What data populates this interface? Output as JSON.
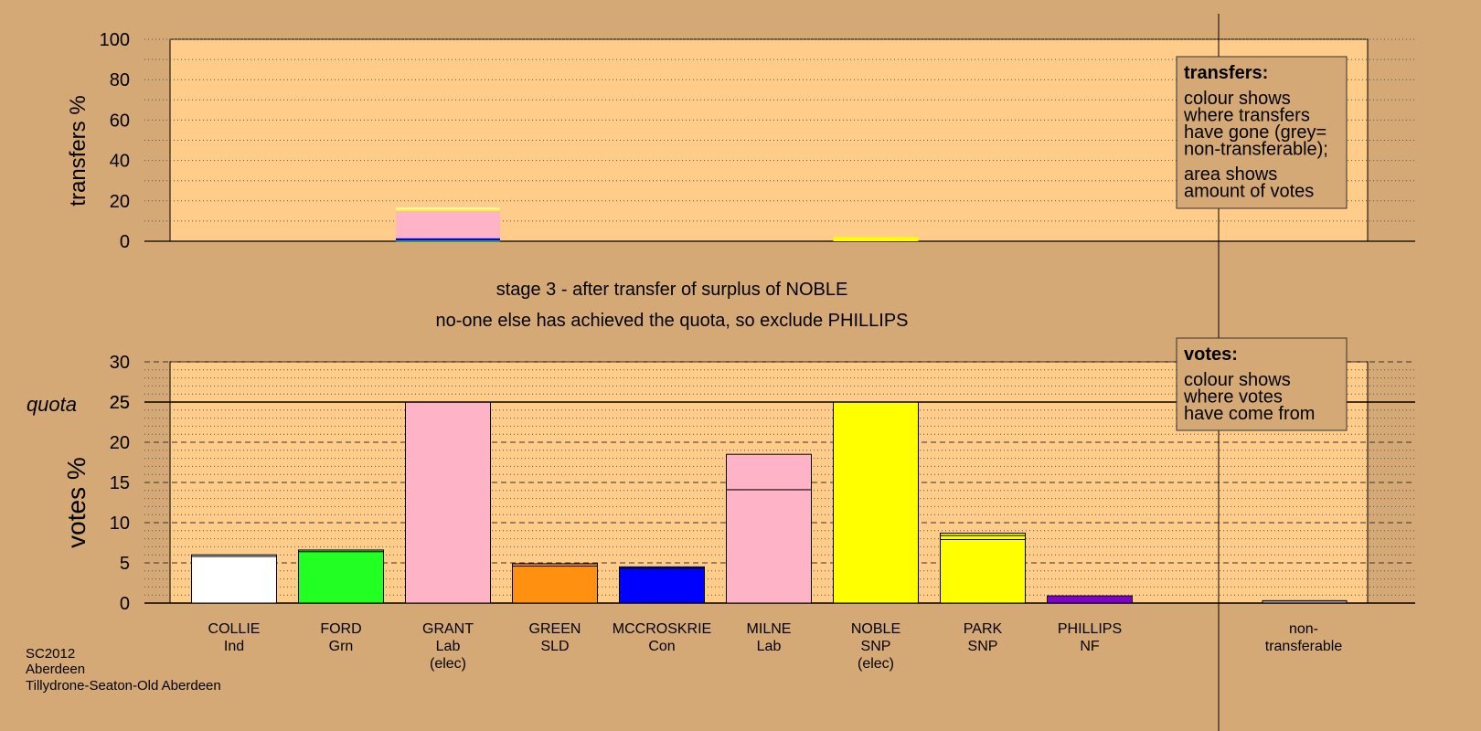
{
  "chart_data": [
    {
      "type": "bar",
      "stacked": true,
      "ylabel": "transfers %",
      "ylim": [
        0,
        100
      ],
      "yticks": [
        0,
        20,
        40,
        60,
        80,
        100
      ],
      "categories": [
        "COLLIE Ind",
        "FORD Grn",
        "GRANT Lab (elec)",
        "GREEN SLD",
        "MCCROSKRIE Con",
        "MILNE Lab",
        "NOBLE SNP (elec)",
        "PARK SNP",
        "PHILLIPS NF"
      ],
      "bars": [
        {
          "category": "GRANT Lab (elec)",
          "segments": [
            {
              "value": 0.3,
              "color": "#00ff00"
            },
            {
              "value": 1.2,
              "color": "#0000ff"
            },
            {
              "value": 13.5,
              "color": "#ffb3c6"
            },
            {
              "value": 1.0,
              "color": "#ffff00"
            },
            {
              "value": 0.6,
              "color": "#ffffff"
            }
          ]
        },
        {
          "category": "NOBLE SNP (elec)",
          "segments": [
            {
              "value": 2.0,
              "color": "#ffff00"
            }
          ]
        }
      ],
      "legend_box": {
        "title": "transfers:",
        "lines1": [
          "colour shows",
          "where transfers",
          "have gone (grey=",
          "non-transferable);"
        ],
        "lines2": [
          "area shows",
          "amount of votes"
        ]
      }
    },
    {
      "type": "bar",
      "stacked": true,
      "ylabel": "votes %",
      "ylim": [
        0,
        30
      ],
      "yticks": [
        0,
        5,
        10,
        15,
        20,
        25,
        30
      ],
      "quota": 25,
      "quota_label": "quota",
      "categories": [
        {
          "name": "COLLIE",
          "party": "Ind",
          "note": ""
        },
        {
          "name": "FORD",
          "party": "Grn",
          "note": ""
        },
        {
          "name": "GRANT",
          "party": "Lab",
          "note": "(elec)"
        },
        {
          "name": "GREEN",
          "party": "SLD",
          "note": ""
        },
        {
          "name": "MCCROSKRIE",
          "party": "Con",
          "note": ""
        },
        {
          "name": "MILNE",
          "party": "Lab",
          "note": ""
        },
        {
          "name": "NOBLE",
          "party": "SNP",
          "note": "(elec)"
        },
        {
          "name": "PARK",
          "party": "SNP",
          "note": ""
        },
        {
          "name": "PHILLIPS",
          "party": "NF",
          "note": ""
        }
      ],
      "bars": [
        {
          "color": "#ffffff",
          "values": [
            5.8,
            0.2
          ]
        },
        {
          "color": "#22ff22",
          "values": [
            6.4,
            0.2
          ]
        },
        {
          "color": "#ffb3c6",
          "values": [
            25.0
          ]
        },
        {
          "color": "#ff9010",
          "values": [
            4.6,
            0.3
          ]
        },
        {
          "color": "#0000ff",
          "values": [
            4.3,
            0.2
          ]
        },
        {
          "color": "#ffb3c6",
          "values": [
            14.1,
            4.4
          ]
        },
        {
          "color": "#ffff00",
          "values": [
            25.0
          ]
        },
        {
          "color": "#ffff00",
          "values": [
            7.9,
            0.5,
            0.3
          ]
        },
        {
          "color": "#8000d0",
          "values": [
            0.9
          ]
        }
      ],
      "nontransferable": {
        "label1": "non-",
        "label2": "transferable",
        "value": 0.3,
        "color": "#a0a0a0"
      },
      "legend_box": {
        "title": "votes:",
        "lines1": [
          "colour shows",
          "where votes",
          "have come from"
        ]
      }
    }
  ],
  "stage_text": "stage 3 - after transfer of surplus of NOBLE",
  "stage_subtext": "no-one else has achieved the quota, so exclude PHILLIPS",
  "footer": [
    "SC2012",
    "Aberdeen",
    "Tillydrone-Seaton-Old Aberdeen"
  ],
  "colors": {
    "background": "#d4a975",
    "plot_bg": "#ffcc8a"
  }
}
